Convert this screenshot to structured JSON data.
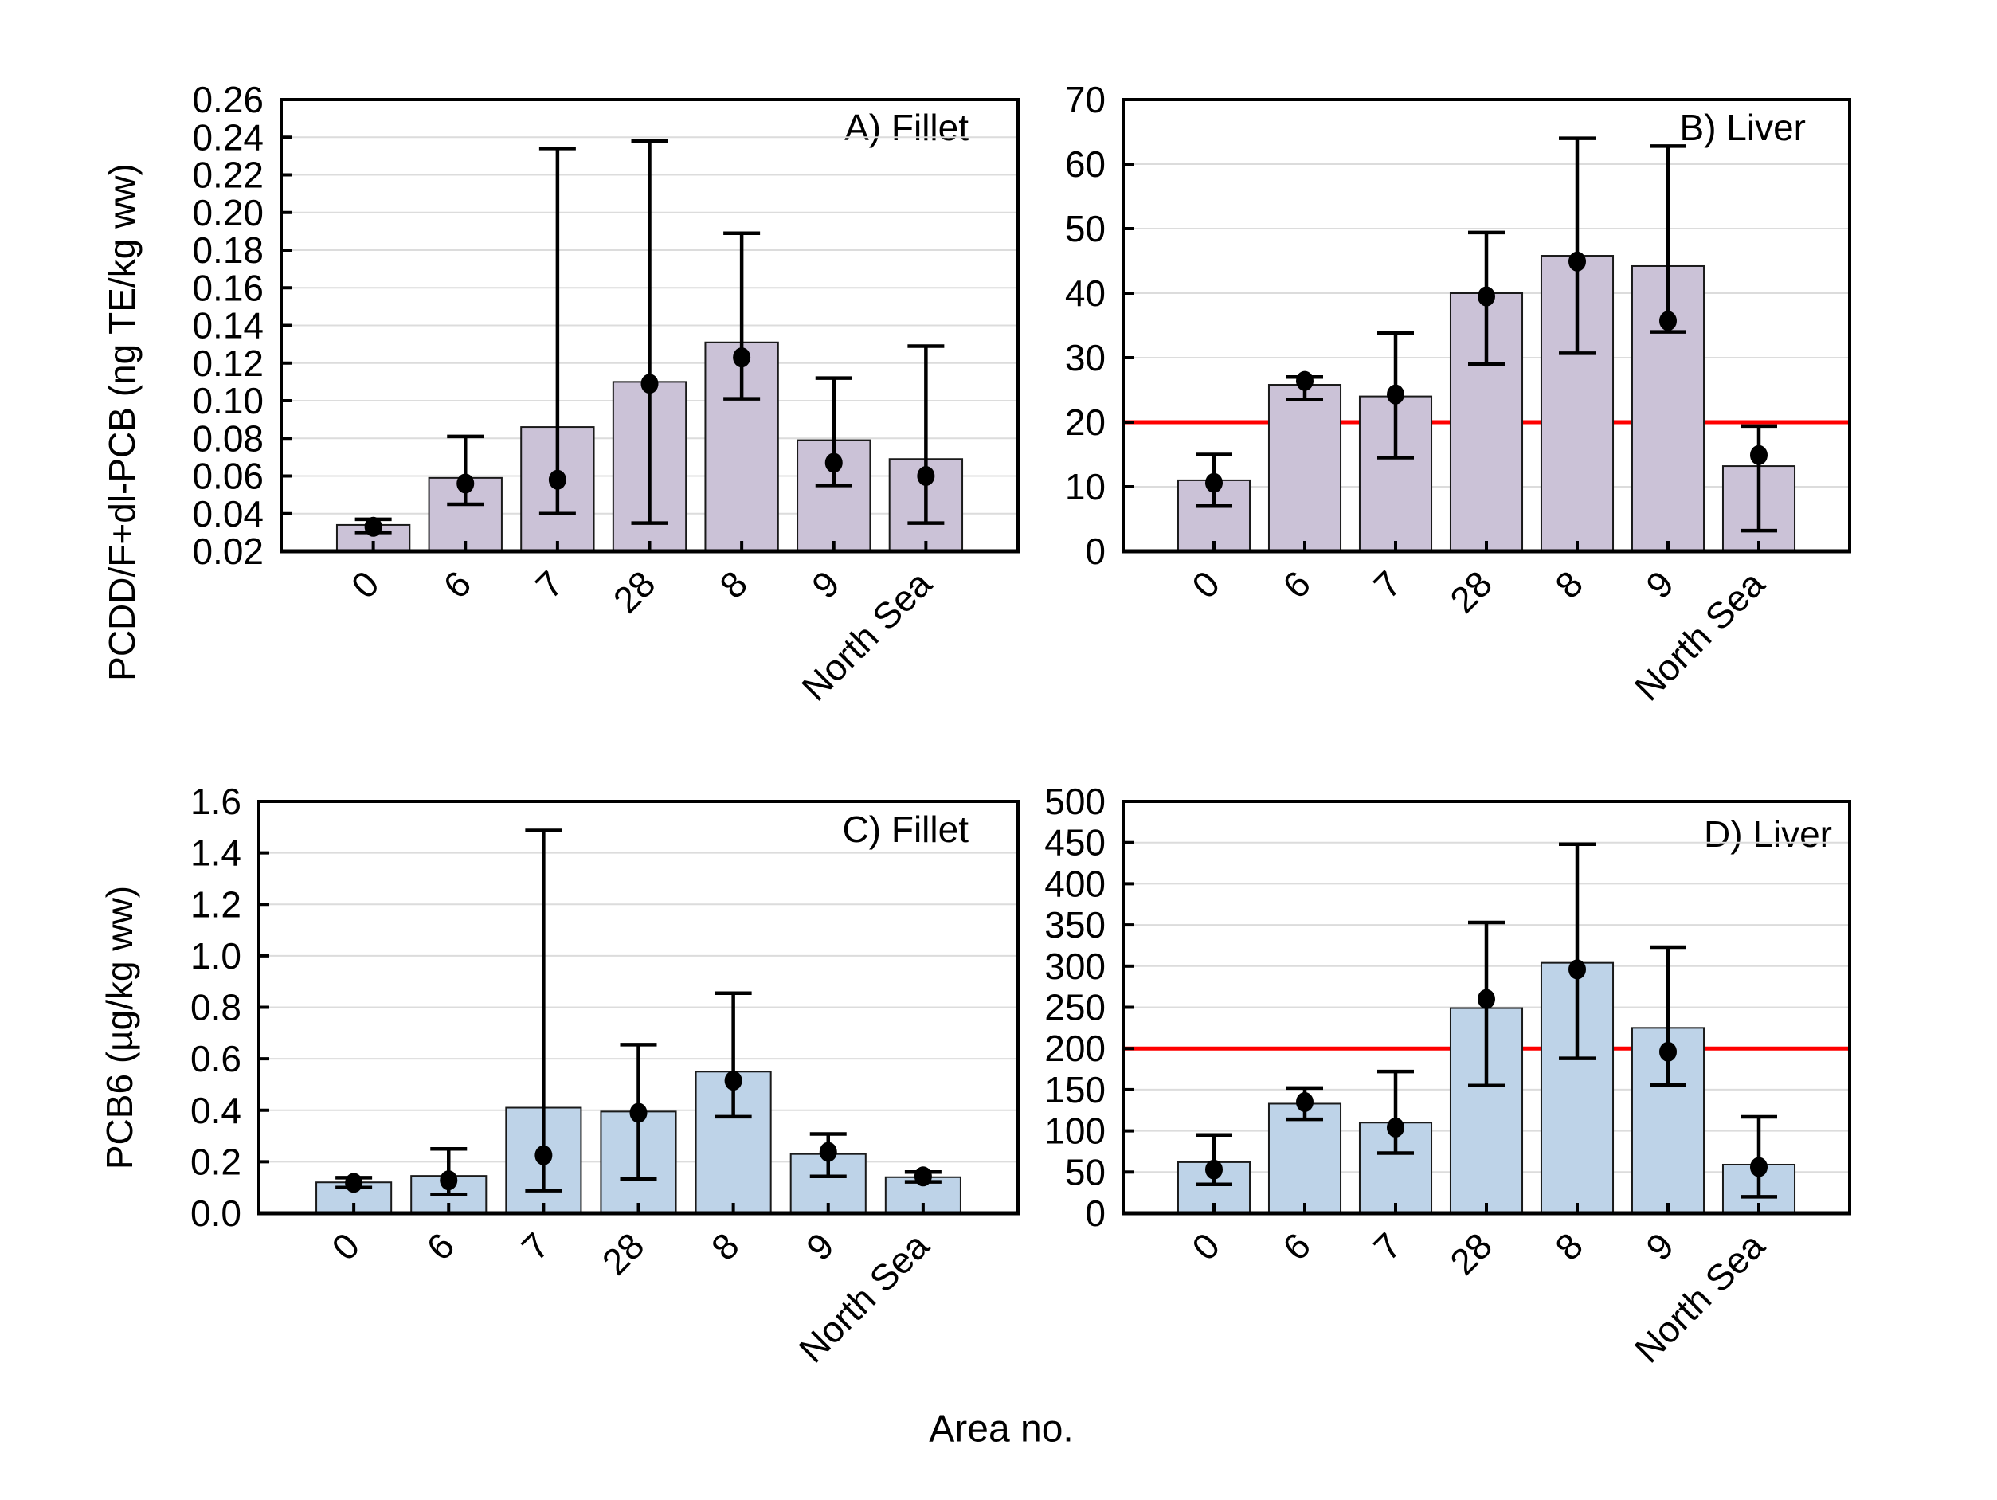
{
  "figure": {
    "xlabel": "Area no.",
    "background_color": "#ffffff",
    "text_color": "#000000",
    "gridline_color": "#dcdcdc",
    "frame_color": "#000000"
  },
  "chart_data": [
    {
      "panel": "A",
      "type": "bar",
      "title": "A) Fillet",
      "ylabel": "PCDD/F+dl-PCB (ng TE/kg ww)",
      "categories": [
        "0",
        "6",
        "7",
        "28",
        "8",
        "9",
        "North Sea"
      ],
      "ylim": [
        0.02,
        0.26
      ],
      "ytick_labels": [
        "0.02",
        "0.04",
        "0.06",
        "0.08",
        "0.10",
        "0.12",
        "0.14",
        "0.16",
        "0.18",
        "0.20",
        "0.22",
        "0.24",
        "0.26"
      ],
      "grid": true,
      "legend": "none",
      "bar_color": "#cbc2d7",
      "bar_values": [
        0.034,
        0.059,
        0.086,
        0.11,
        0.131,
        0.079,
        0.069
      ],
      "point_values": [
        0.033,
        0.056,
        0.058,
        0.109,
        0.123,
        0.067,
        0.06
      ],
      "err_low": [
        0.03,
        0.045,
        0.04,
        0.035,
        0.101,
        0.055,
        0.035
      ],
      "err_high": [
        0.037,
        0.081,
        0.234,
        0.238,
        0.189,
        0.112,
        0.129
      ],
      "ref_line": null,
      "ref_color": null
    },
    {
      "panel": "B",
      "type": "bar",
      "title": "B) Liver",
      "ylabel": "",
      "categories": [
        "0",
        "6",
        "7",
        "28",
        "8",
        "9",
        "North Sea"
      ],
      "ylim": [
        0,
        70
      ],
      "ytick_labels": [
        "0",
        "10",
        "20",
        "30",
        "40",
        "50",
        "60",
        "70"
      ],
      "grid": true,
      "legend": "none",
      "bar_color": "#cbc2d7",
      "bar_values": [
        11,
        25.8,
        24,
        40,
        45.8,
        44.2,
        13.2
      ],
      "point_values": [
        10.6,
        26.4,
        24.3,
        39.5,
        44.9,
        35.7,
        14.9
      ],
      "err_low": [
        7,
        23.5,
        14.5,
        29,
        30.7,
        34,
        3.2
      ],
      "err_high": [
        15,
        27,
        33.8,
        49.4,
        64,
        62.8,
        19.4
      ],
      "ref_line": 20,
      "ref_color": "#ff0000"
    },
    {
      "panel": "C",
      "type": "bar",
      "title": "C) Fillet",
      "ylabel": "PCB6 (µg/kg ww)",
      "categories": [
        "0",
        "6",
        "7",
        "28",
        "8",
        "9",
        "North Sea"
      ],
      "ylim": [
        0,
        1.6
      ],
      "ytick_labels": [
        "0.0",
        "0.2",
        "0.4",
        "0.6",
        "0.8",
        "1.0",
        "1.2",
        "1.4",
        "1.6"
      ],
      "grid": true,
      "legend": "none",
      "bar_color": "#bed3e8",
      "bar_values": [
        0.12,
        0.145,
        0.41,
        0.395,
        0.55,
        0.23,
        0.14
      ],
      "point_values": [
        0.118,
        0.128,
        0.225,
        0.39,
        0.515,
        0.238,
        0.143
      ],
      "err_low": [
        0.1,
        0.073,
        0.088,
        0.133,
        0.375,
        0.143,
        0.122
      ],
      "err_high": [
        0.138,
        0.25,
        1.487,
        0.655,
        0.855,
        0.308,
        0.16
      ],
      "ref_line": null,
      "ref_color": null
    },
    {
      "panel": "D",
      "type": "bar",
      "title": "D) Liver",
      "ylabel": "",
      "categories": [
        "0",
        "6",
        "7",
        "28",
        "8",
        "9",
        "North Sea"
      ],
      "ylim": [
        0,
        500
      ],
      "ytick_labels": [
        "0",
        "50",
        "100",
        "150",
        "200",
        "250",
        "300",
        "350",
        "400",
        "450",
        "500"
      ],
      "grid": true,
      "legend": "none",
      "bar_color": "#bed3e8",
      "bar_values": [
        62,
        133,
        110,
        249,
        304,
        225,
        59
      ],
      "point_values": [
        53,
        135,
        104,
        260,
        296,
        196,
        56
      ],
      "err_low": [
        35,
        114,
        73,
        155,
        188,
        156,
        20
      ],
      "err_high": [
        95,
        152,
        172,
        353,
        448,
        323,
        117
      ],
      "ref_line": 200,
      "ref_color": "#ff0000"
    }
  ]
}
